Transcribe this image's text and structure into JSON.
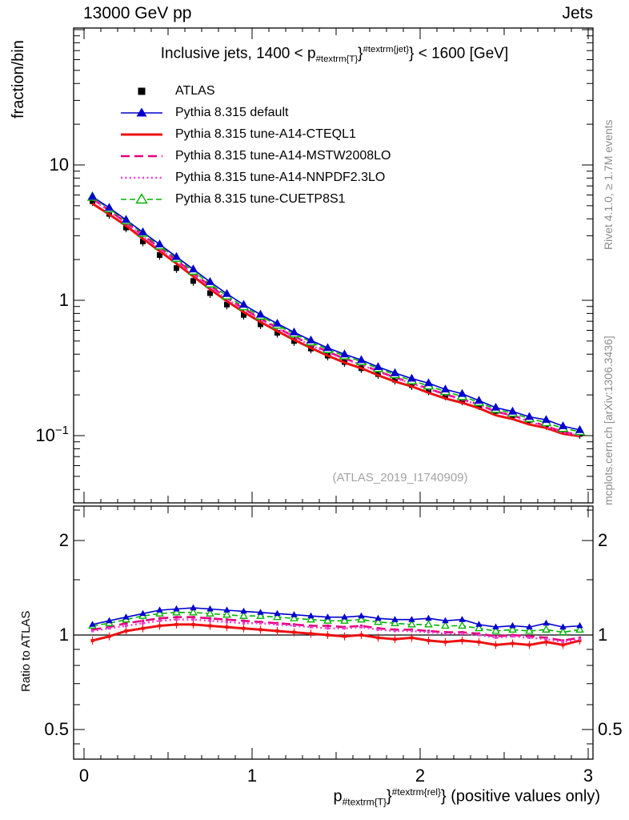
{
  "header": {
    "left": "13000 GeV pp",
    "right": "Jets"
  },
  "side_notes": {
    "top": "Rivet 4.1.0, ≥ 1.7M events",
    "bottom": "mcplots.cern.ch [arXiv:1306.3436]"
  },
  "watermark": "(ATLAS_2019_I1740909)",
  "title_parts": {
    "prefix": "Inclusive jets, 1400 < p",
    "sub": "#textrm{T}",
    "mid": "}",
    "sup": "#textrm{jet}",
    "suffix": "} < 1600 [GeV]"
  },
  "xlabel_parts": {
    "prefix": "p",
    "sub": "#textrm{T}",
    "mid": "}",
    "sup": "#textrm{rel}",
    "suffix": "} (positive values only)"
  },
  "chart_data": {
    "type": "line",
    "title": "Inclusive jets, 1400 < pT^jet < 1600 [GeV]",
    "ylabel_main": "fraction/bin",
    "ylabel_ratio": "Ratio to ATLAS",
    "xlabel": "pT^rel (positive values only)",
    "x_tick_values": [
      0,
      1,
      2,
      3
    ],
    "main_ytick_values": [
      10,
      1,
      0.1
    ],
    "ratio_ytick_values": [
      2,
      1,
      0.5
    ],
    "xlim": [
      -0.06,
      3.03
    ],
    "ylim_main_log": [
      0.032,
      103
    ],
    "ylim_ratio_log": [
      0.4,
      2.57
    ],
    "ratio_baseline": 1,
    "grid": false,
    "legend_position": "top-left",
    "x": [
      0.05,
      0.15,
      0.25,
      0.35,
      0.45,
      0.55,
      0.65,
      0.75,
      0.85,
      0.95,
      1.05,
      1.15,
      1.25,
      1.35,
      1.45,
      1.55,
      1.65,
      1.75,
      1.85,
      1.95,
      2.05,
      2.15,
      2.25,
      2.35,
      2.45,
      2.55,
      2.65,
      2.75,
      2.85,
      2.95
    ],
    "series": [
      {
        "label": "ATLAS",
        "color": "#000000",
        "line": "none",
        "width": 0,
        "marker": "square",
        "values": [
          5.4,
          4.35,
          3.45,
          2.72,
          2.16,
          1.73,
          1.39,
          1.13,
          0.93,
          0.78,
          0.665,
          0.575,
          0.5,
          0.44,
          0.39,
          0.35,
          0.315,
          0.285,
          0.259,
          0.236,
          0.216,
          0.198,
          0.182,
          0.168,
          0.152,
          0.141,
          0.13,
          0.12,
          0.111,
          0.103
        ]
      },
      {
        "label": "Pythia 8.315 default",
        "color": "#0000cc",
        "line": "solid",
        "width": 1.6,
        "marker": "triangle-filled",
        "ratio": [
          1.08,
          1.11,
          1.14,
          1.17,
          1.2,
          1.21,
          1.22,
          1.21,
          1.2,
          1.19,
          1.18,
          1.17,
          1.16,
          1.15,
          1.14,
          1.14,
          1.15,
          1.13,
          1.12,
          1.12,
          1.13,
          1.11,
          1.12,
          1.08,
          1.06,
          1.07,
          1.06,
          1.09,
          1.06,
          1.07
        ]
      },
      {
        "label": "Pythia 8.315 tune-A14-CTEQL1",
        "color": "#ee1111",
        "line": "solid",
        "width": 3,
        "marker": "square-small",
        "ratio": [
          0.96,
          0.99,
          1.03,
          1.05,
          1.07,
          1.08,
          1.08,
          1.07,
          1.06,
          1.05,
          1.04,
          1.03,
          1.02,
          1.01,
          1.0,
          0.99,
          1.0,
          0.98,
          0.97,
          0.98,
          0.96,
          0.95,
          0.96,
          0.95,
          0.93,
          0.94,
          0.93,
          0.95,
          0.93,
          0.96
        ]
      },
      {
        "label": "Pythia 8.315 tune-A14-MSTW2008LO",
        "color": "#e6007e",
        "line": "dashed",
        "width": 2.6,
        "marker": "square-small",
        "ratio": [
          1.04,
          1.06,
          1.09,
          1.11,
          1.13,
          1.14,
          1.14,
          1.13,
          1.12,
          1.11,
          1.1,
          1.09,
          1.08,
          1.07,
          1.07,
          1.06,
          1.07,
          1.05,
          1.04,
          1.04,
          1.03,
          1.02,
          1.02,
          1.01,
          0.99,
          1.0,
          0.99,
          0.98,
          0.96,
          0.98
        ]
      },
      {
        "label": "Pythia 8.315 tune-A14-NNPDF2.3LO",
        "color": "#ee3ecc",
        "line": "dotted",
        "width": 2.4,
        "marker": "square-small",
        "ratio": [
          1.03,
          1.05,
          1.07,
          1.09,
          1.11,
          1.12,
          1.12,
          1.11,
          1.1,
          1.09,
          1.09,
          1.08,
          1.07,
          1.06,
          1.05,
          1.05,
          1.06,
          1.04,
          1.03,
          1.03,
          1.02,
          1.01,
          1.01,
          1.0,
          0.98,
          0.99,
          0.98,
          0.97,
          0.95,
          0.97
        ]
      },
      {
        "label": "Pythia 8.315 tune-CUETP8S1",
        "color": "#00b300",
        "line": "dashed",
        "width": 1.6,
        "marker": "triangle-open",
        "ratio": [
          1.07,
          1.09,
          1.12,
          1.15,
          1.17,
          1.18,
          1.18,
          1.17,
          1.16,
          1.15,
          1.15,
          1.14,
          1.13,
          1.12,
          1.11,
          1.11,
          1.12,
          1.1,
          1.09,
          1.08,
          1.08,
          1.07,
          1.07,
          1.05,
          1.03,
          1.04,
          1.03,
          1.04,
          1.02,
          1.04
        ]
      }
    ]
  }
}
